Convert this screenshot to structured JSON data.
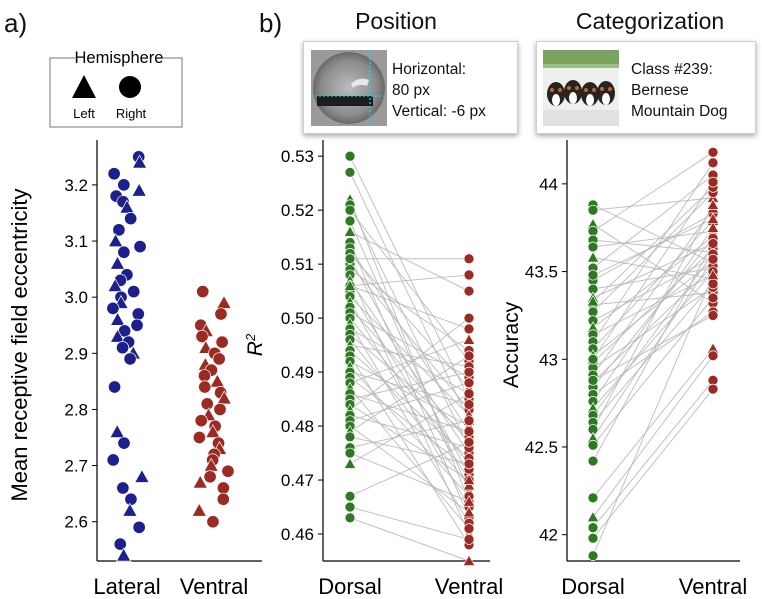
{
  "panel_labels": {
    "a": "a)",
    "b": "b)"
  },
  "legend": {
    "title": "Hemisphere",
    "left_label": "Left",
    "right_label": "Right"
  },
  "cards": {
    "position": {
      "title": "Position",
      "line1": "Horizontal:",
      "line2": "80 px",
      "line3": "Vertical: -6 px"
    },
    "categorization": {
      "title": "Categorization",
      "line1": "Class #239:",
      "line2": "Bernese",
      "line3": "Mountain Dog"
    }
  },
  "colors": {
    "blue": "#1c1f8c",
    "green": "#2e7a23",
    "red": "#9b2a22",
    "line": "#b7b7b7"
  },
  "chart_data": [
    {
      "type": "scatter",
      "ylabel": "Mean receptive field eccentricity",
      "categories": [
        "Lateral",
        "Ventral"
      ],
      "ylim": [
        2.53,
        3.28
      ],
      "yticks": [
        2.6,
        2.7,
        2.8,
        2.9,
        3.0,
        3.1,
        3.2
      ],
      "series": [
        {
          "name": "Lateral",
          "values": [
            3.25,
            3.24,
            3.22,
            3.2,
            3.19,
            3.18,
            3.17,
            3.16,
            3.14,
            3.12,
            3.1,
            3.09,
            3.08,
            3.06,
            3.04,
            3.03,
            3.02,
            3.01,
            3.0,
            2.99,
            2.98,
            2.97,
            2.96,
            2.95,
            2.94,
            2.93,
            2.92,
            2.91,
            2.9,
            2.89,
            2.84,
            2.76,
            2.74,
            2.71,
            2.68,
            2.66,
            2.64,
            2.62,
            2.59,
            2.56,
            2.54
          ]
        },
        {
          "name": "Ventral",
          "values": [
            3.01,
            2.99,
            2.97,
            2.95,
            2.94,
            2.93,
            2.92,
            2.91,
            2.9,
            2.89,
            2.88,
            2.87,
            2.86,
            2.85,
            2.84,
            2.83,
            2.82,
            2.81,
            2.8,
            2.79,
            2.78,
            2.77,
            2.76,
            2.75,
            2.74,
            2.73,
            2.72,
            2.71,
            2.7,
            2.69,
            2.68,
            2.67,
            2.66,
            2.64,
            2.62,
            2.6
          ]
        }
      ]
    },
    {
      "type": "line",
      "title": "Position",
      "ylabel": "R²",
      "categories": [
        "Dorsal",
        "Ventral"
      ],
      "ylim": [
        0.455,
        0.533
      ],
      "yticks": [
        0.46,
        0.47,
        0.48,
        0.49,
        0.5,
        0.51,
        0.52,
        0.53
      ],
      "pairs": [
        [
          0.53,
          0.485
        ],
        [
          0.527,
          0.481
        ],
        [
          0.522,
          0.466
        ],
        [
          0.521,
          0.476
        ],
        [
          0.52,
          0.492
        ],
        [
          0.518,
          0.468
        ],
        [
          0.516,
          0.505
        ],
        [
          0.514,
          0.463
        ],
        [
          0.513,
          0.479
        ],
        [
          0.512,
          0.487
        ],
        [
          0.511,
          0.471
        ],
        [
          0.51,
          0.483
        ],
        [
          0.509,
          0.494
        ],
        [
          0.508,
          0.46
        ],
        [
          0.507,
          0.475
        ],
        [
          0.506,
          0.498
        ],
        [
          0.505,
          0.47
        ],
        [
          0.504,
          0.482
        ],
        [
          0.503,
          0.465
        ],
        [
          0.502,
          0.477
        ],
        [
          0.501,
          0.489
        ],
        [
          0.5,
          0.473
        ],
        [
          0.499,
          0.462
        ],
        [
          0.498,
          0.486
        ],
        [
          0.497,
          0.478
        ],
        [
          0.496,
          0.469
        ],
        [
          0.495,
          0.491
        ],
        [
          0.494,
          0.474
        ],
        [
          0.493,
          0.458
        ],
        [
          0.492,
          0.48
        ],
        [
          0.491,
          0.467
        ],
        [
          0.49,
          0.484
        ],
        [
          0.489,
          0.472
        ],
        [
          0.488,
          0.496
        ],
        [
          0.487,
          0.461
        ],
        [
          0.486,
          0.479
        ],
        [
          0.485,
          0.49
        ],
        [
          0.484,
          0.47
        ],
        [
          0.483,
          0.5
        ],
        [
          0.482,
          0.476
        ],
        [
          0.481,
          0.488
        ],
        [
          0.48,
          0.464
        ],
        [
          0.479,
          0.493
        ],
        [
          0.478,
          0.473
        ],
        [
          0.476,
          0.481
        ],
        [
          0.475,
          0.466
        ],
        [
          0.473,
          0.486
        ],
        [
          0.467,
          0.477
        ],
        [
          0.465,
          0.459
        ],
        [
          0.463,
          0.455
        ],
        [
          0.506,
          0.508
        ],
        [
          0.511,
          0.511
        ]
      ]
    },
    {
      "type": "line",
      "title": "Categorization",
      "ylabel": "Accuracy",
      "categories": [
        "Dorsal",
        "Ventral"
      ],
      "ylim": [
        41.85,
        44.25
      ],
      "yticks": [
        42,
        42.5,
        43,
        43.5,
        44
      ],
      "pairs": [
        [
          43.88,
          43.55
        ],
        [
          43.85,
          43.92
        ],
        [
          43.77,
          43.32
        ],
        [
          43.73,
          44.18
        ],
        [
          43.68,
          43.61
        ],
        [
          43.64,
          43.73
        ],
        [
          43.58,
          43.46
        ],
        [
          43.52,
          44.05
        ],
        [
          43.45,
          43.83
        ],
        [
          43.4,
          43.52
        ],
        [
          43.35,
          43.66
        ],
        [
          43.31,
          43.38
        ],
        [
          43.27,
          43.95
        ],
        [
          43.22,
          43.58
        ],
        [
          43.18,
          43.7
        ],
        [
          43.14,
          43.48
        ],
        [
          43.1,
          44.12
        ],
        [
          43.06,
          43.79
        ],
        [
          43.02,
          43.56
        ],
        [
          42.98,
          43.63
        ],
        [
          42.95,
          43.41
        ],
        [
          42.91,
          43.86
        ],
        [
          42.87,
          43.53
        ],
        [
          42.84,
          43.69
        ],
        [
          42.8,
          43.27
        ],
        [
          42.76,
          43.75
        ],
        [
          42.72,
          43.5
        ],
        [
          42.68,
          43.6
        ],
        [
          42.64,
          43.43
        ],
        [
          42.6,
          43.88
        ],
        [
          42.55,
          43.57
        ],
        [
          42.51,
          43.35
        ],
        [
          42.42,
          43.66
        ],
        [
          42.21,
          43.06
        ],
        [
          42.1,
          43.02
        ],
        [
          42.04,
          42.88
        ],
        [
          41.98,
          42.83
        ],
        [
          41.88,
          43.48
        ],
        [
          43.33,
          43.98
        ],
        [
          43.0,
          44.01
        ],
        [
          42.88,
          43.25
        ],
        [
          43.48,
          43.8
        ]
      ]
    }
  ]
}
